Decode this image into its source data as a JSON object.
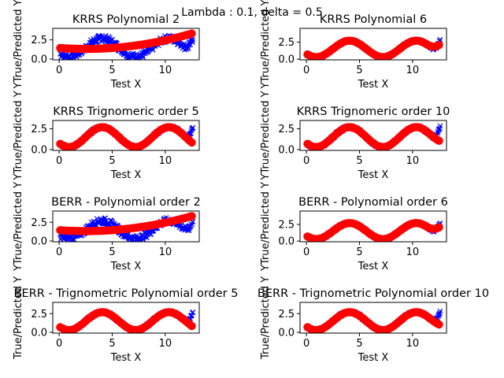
{
  "suptitle": "Lambda : 0.1, delta = 0.5",
  "colors": {
    "true": "#0000ff",
    "predicted": "#ff0000"
  },
  "chart_data": [
    {
      "type": "scatter",
      "title": "KRRS Polynomial 2",
      "xlabel": "Test X",
      "ylabel": "YTrue/Predicted Y",
      "xlim": [
        -0.6,
        13.2
      ],
      "xticks": [
        0,
        5,
        10
      ],
      "ylim": [
        -0.1,
        4.0
      ],
      "yticks": [
        0.0,
        2.5
      ],
      "ytick_labels": [
        "0.0",
        "2.5"
      ],
      "predicted": {
        "kind": "poly",
        "coef": [
          1.45,
          -0.1,
          0.02
        ]
      },
      "true_scatter": 0.9
    },
    {
      "type": "scatter",
      "title": "KRRS Polynomial 6",
      "xlabel": "Test X",
      "ylabel": "YTrue/Predicted Y",
      "xlim": [
        -0.6,
        13.2
      ],
      "xticks": [
        0,
        5,
        10
      ],
      "ylim": [
        -0.1,
        4.5
      ],
      "yticks": [
        0.0,
        2.5
      ],
      "ytick_labels": [
        "0.0",
        "2.5"
      ],
      "predicted": {
        "kind": "sin",
        "end_up": 1.8
      },
      "true_scatter": 0.35
    },
    {
      "type": "scatter",
      "title": "KRRS Trignomeric order 5",
      "xlabel": "Test X",
      "ylabel": "YTrue/Predicted Y",
      "xlim": [
        -0.6,
        13.2
      ],
      "xticks": [
        0,
        5,
        10
      ],
      "ylim": [
        -0.1,
        3.5
      ],
      "yticks": [
        0.0,
        2.5
      ],
      "ytick_labels": [
        "0.0",
        "2.5"
      ],
      "predicted": {
        "kind": "sin",
        "end_up": 0.0
      },
      "true_scatter": 0.35
    },
    {
      "type": "scatter",
      "title": "KRRS Trignomeric order 10",
      "xlabel": "Test X",
      "ylabel": "YTrue/Predicted Y",
      "xlim": [
        -0.6,
        13.2
      ],
      "xticks": [
        0,
        5,
        10
      ],
      "ylim": [
        -0.1,
        3.5
      ],
      "yticks": [
        0.0,
        2.5
      ],
      "ytick_labels": [
        "0.0",
        "2.5"
      ],
      "predicted": {
        "kind": "sin",
        "end_up": 0.3
      },
      "true_scatter": 0.35
    },
    {
      "type": "scatter",
      "title": "BERR - Polynomial order 2",
      "xlabel": "Test X",
      "ylabel": "YTrue/Predicted Y",
      "xlim": [
        -0.6,
        13.2
      ],
      "xticks": [
        0,
        5,
        10
      ],
      "ylim": [
        -0.1,
        4.0
      ],
      "yticks": [
        0.0,
        2.5
      ],
      "ytick_labels": [
        "0.0",
        "2.5"
      ],
      "predicted": {
        "kind": "poly",
        "coef": [
          1.45,
          -0.1,
          0.02
        ]
      },
      "true_scatter": 0.9
    },
    {
      "type": "scatter",
      "title": "BERR - Polynomial order 6",
      "xlabel": "Test X",
      "ylabel": "YTrue/Predicted Y",
      "xlim": [
        -0.6,
        13.2
      ],
      "xticks": [
        0,
        5,
        10
      ],
      "ylim": [
        -0.1,
        4.5
      ],
      "yticks": [
        0.0,
        2.5
      ],
      "ytick_labels": [
        "0.0",
        "2.5"
      ],
      "predicted": {
        "kind": "sin",
        "end_up": 1.8
      },
      "true_scatter": 0.35
    },
    {
      "type": "scatter",
      "title": "BERR - Trignometric Polynomial order 5",
      "xlabel": "Test X",
      "ylabel": "True/Predicted Y",
      "xlim": [
        -0.6,
        13.2
      ],
      "xticks": [
        0,
        5,
        10
      ],
      "ylim": [
        -0.1,
        4.0
      ],
      "yticks": [
        0.0,
        2.5
      ],
      "ytick_labels": [
        "0.0",
        "2.5"
      ],
      "predicted": {
        "kind": "sin",
        "end_up": 0.0
      },
      "true_scatter": 0.35
    },
    {
      "type": "scatter",
      "title": "BERR - Trignometric Polynomial order 10",
      "xlabel": "Test X",
      "ylabel": "True/Predicted Y",
      "xlim": [
        -0.6,
        13.2
      ],
      "xticks": [
        0,
        5,
        10
      ],
      "ylim": [
        -0.1,
        4.0
      ],
      "yticks": [
        0.0,
        2.5
      ],
      "ytick_labels": [
        "0.0",
        "2.5"
      ],
      "predicted": {
        "kind": "sin",
        "end_up": 0.3
      },
      "true_scatter": 0.35
    }
  ]
}
